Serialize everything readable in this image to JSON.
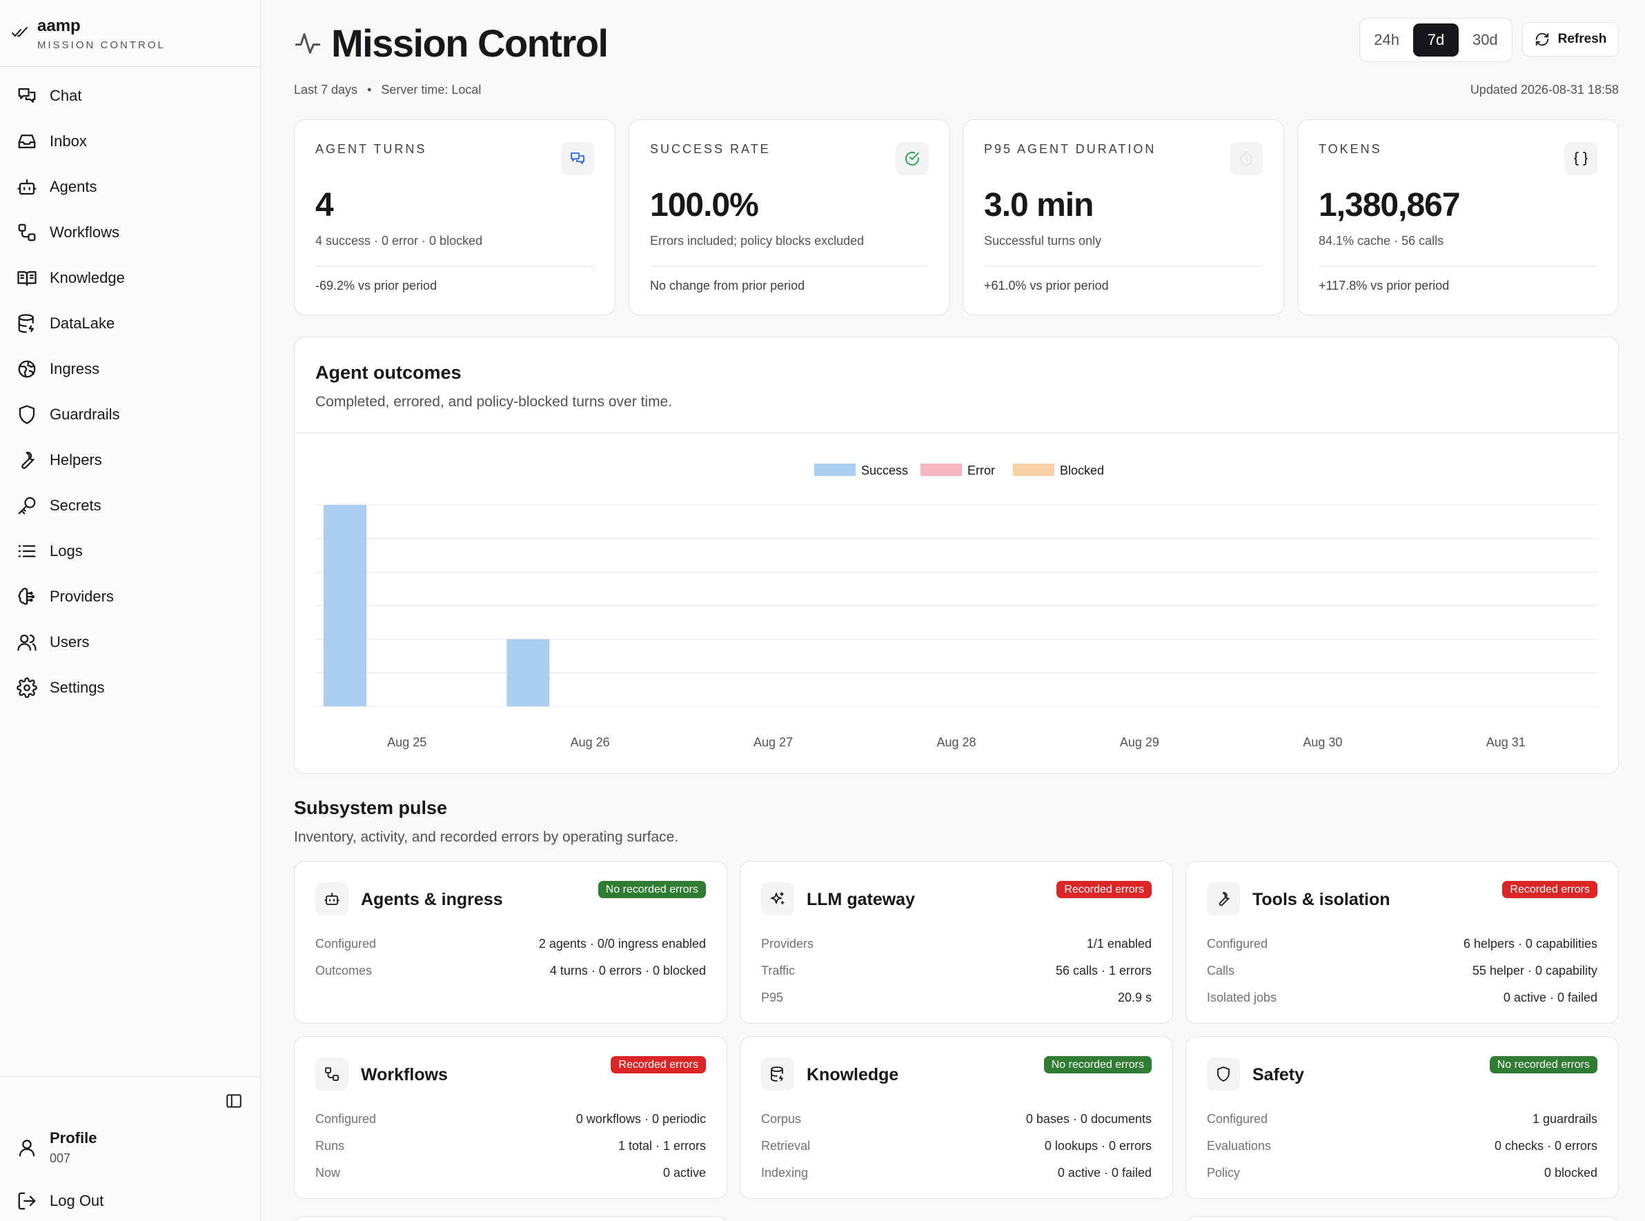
{
  "brand": {
    "name": "aamp",
    "subtitle": "MISSION CONTROL"
  },
  "sidebar": {
    "items": [
      {
        "label": "Chat",
        "icon": "chat-icon"
      },
      {
        "label": "Inbox",
        "icon": "inbox-icon"
      },
      {
        "label": "Agents",
        "icon": "bot-icon"
      },
      {
        "label": "Workflows",
        "icon": "workflow-icon"
      },
      {
        "label": "Knowledge",
        "icon": "book-icon"
      },
      {
        "label": "DataLake",
        "icon": "database-icon"
      },
      {
        "label": "Ingress",
        "icon": "globe-icon"
      },
      {
        "label": "Guardrails",
        "icon": "shield-icon"
      },
      {
        "label": "Helpers",
        "icon": "wrench-icon"
      },
      {
        "label": "Secrets",
        "icon": "key-icon"
      },
      {
        "label": "Logs",
        "icon": "list-icon"
      },
      {
        "label": "Providers",
        "icon": "brain-icon"
      },
      {
        "label": "Users",
        "icon": "users-icon"
      },
      {
        "label": "Settings",
        "icon": "gear-icon"
      }
    ],
    "profile": {
      "name": "Profile",
      "id": "007"
    },
    "logout_label": "Log Out"
  },
  "header": {
    "title": "Mission Control",
    "ranges": [
      "24h",
      "7d",
      "30d"
    ],
    "active_range": "7d",
    "refresh_label": "Refresh",
    "period": "Last 7 days",
    "server_time": "Server time: Local",
    "updated": "Updated 2026-08-31 18:58"
  },
  "stats": [
    {
      "label": "AGENT TURNS",
      "value": "4",
      "detail": "4 success · 0 error · 0 blocked",
      "change": "-69.2% vs prior period",
      "icon": "chat-icon"
    },
    {
      "label": "SUCCESS RATE",
      "value": "100.0%",
      "detail": "Errors included; policy blocks excluded",
      "change": "No change from prior period",
      "icon": "check-circle-icon"
    },
    {
      "label": "P95 AGENT DURATION",
      "value": "3.0 min",
      "detail": "Successful turns only",
      "change": "+61.0% vs prior period",
      "icon": "timer-icon"
    },
    {
      "label": "TOKENS",
      "value": "1,380,867",
      "detail": "84.1% cache · 56 calls",
      "change": "+117.8% vs prior period",
      "icon": "braces-icon"
    }
  ],
  "outcomes": {
    "title": "Agent outcomes",
    "subtitle": "Completed, errored, and policy-blocked turns over time."
  },
  "chart_data": {
    "type": "bar",
    "stacked": true,
    "categories": [
      "Aug 25",
      "Aug 26",
      "Aug 27",
      "Aug 28",
      "Aug 29",
      "Aug 30",
      "Aug 31"
    ],
    "series": [
      {
        "name": "Success",
        "values": [
          3,
          1,
          0,
          0,
          0,
          0,
          0
        ],
        "color": "#abcdf0"
      },
      {
        "name": "Error",
        "values": [
          0,
          0,
          0,
          0,
          0,
          0,
          0
        ],
        "color": "#f5b6c1"
      },
      {
        "name": "Blocked",
        "values": [
          0,
          0,
          0,
          0,
          0,
          0,
          0
        ],
        "color": "#f8d2a6"
      }
    ],
    "ylim": [
      0,
      3
    ],
    "grid": true,
    "legend": "top-center",
    "xlabel": "",
    "ylabel": ""
  },
  "pulse": {
    "title": "Subsystem pulse",
    "subtitle": "Inventory, activity, and recorded errors by operating surface.",
    "status_colors": {
      "ok": "#2e7d32",
      "error": "#dc2626"
    },
    "cards": [
      {
        "title": "Agents & ingress",
        "icon": "bot-icon",
        "status": "ok",
        "badge": "No recorded errors",
        "rows": [
          {
            "k": "Configured",
            "v": "2 agents · 0/0 ingress enabled"
          },
          {
            "k": "Outcomes",
            "v": "4 turns · 0 errors · 0 blocked"
          }
        ]
      },
      {
        "title": "LLM gateway",
        "icon": "sparkles-icon",
        "status": "error",
        "badge": "Recorded errors",
        "rows": [
          {
            "k": "Providers",
            "v": "1/1 enabled"
          },
          {
            "k": "Traffic",
            "v": "56 calls · 1 errors"
          },
          {
            "k": "P95",
            "v": "20.9 s"
          }
        ]
      },
      {
        "title": "Tools & isolation",
        "icon": "wrench-icon",
        "status": "error",
        "badge": "Recorded errors",
        "rows": [
          {
            "k": "Configured",
            "v": "6 helpers · 0 capabilities"
          },
          {
            "k": "Calls",
            "v": "55 helper · 0 capability"
          },
          {
            "k": "Isolated jobs",
            "v": "0 active · 0 failed"
          }
        ]
      },
      {
        "title": "Workflows",
        "icon": "workflow-icon",
        "status": "error",
        "badge": "Recorded errors",
        "rows": [
          {
            "k": "Configured",
            "v": "0 workflows · 0 periodic"
          },
          {
            "k": "Runs",
            "v": "1 total · 1 errors"
          },
          {
            "k": "Now",
            "v": "0 active"
          }
        ]
      },
      {
        "title": "Knowledge",
        "icon": "database-icon",
        "status": "ok",
        "badge": "No recorded errors",
        "rows": [
          {
            "k": "Corpus",
            "v": "0 bases · 0 documents"
          },
          {
            "k": "Retrieval",
            "v": "0 lookups · 0 errors"
          },
          {
            "k": "Indexing",
            "v": "0 active · 0 failed"
          }
        ]
      },
      {
        "title": "Safety",
        "icon": "shield-icon",
        "status": "ok",
        "badge": "No recorded errors",
        "rows": [
          {
            "k": "Configured",
            "v": "1 guardrails"
          },
          {
            "k": "Evaluations",
            "v": "0 checks · 0 errors"
          },
          {
            "k": "Policy",
            "v": "0 blocked"
          }
        ]
      }
    ]
  }
}
